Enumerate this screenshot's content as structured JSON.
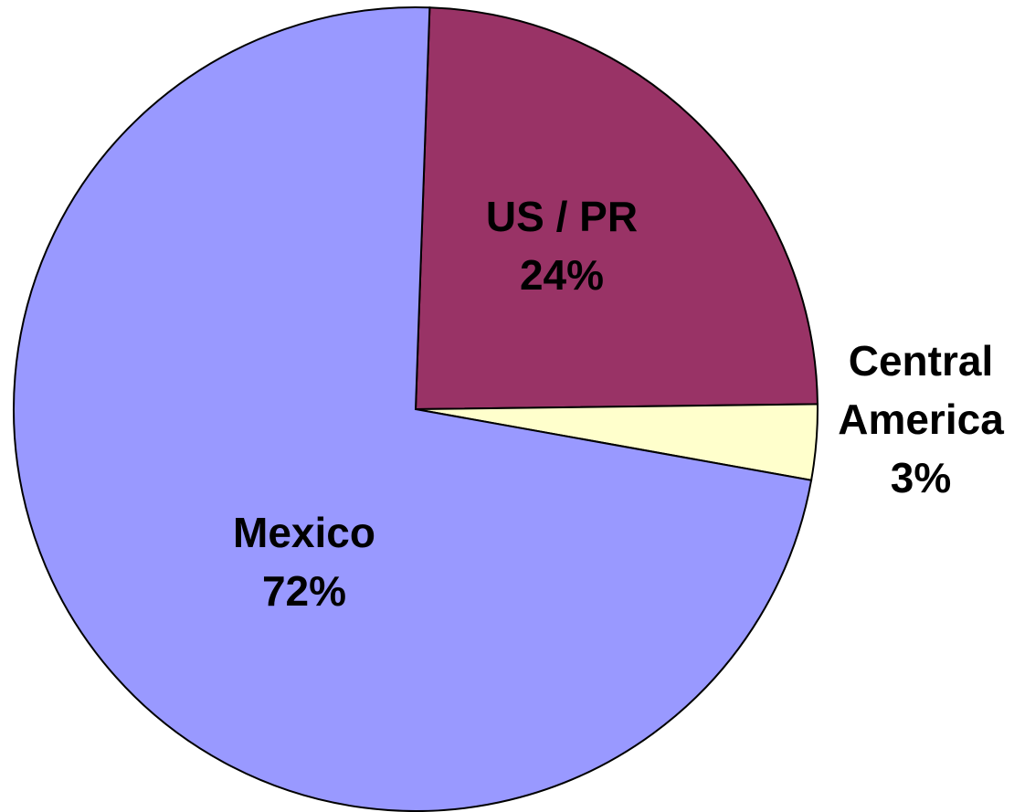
{
  "chart_data": {
    "type": "pie",
    "categories": [
      "US / PR",
      "Central America",
      "Mexico"
    ],
    "values": [
      24,
      3,
      72
    ],
    "value_labels": [
      "24%",
      "3%",
      "72%"
    ],
    "colors": [
      "#993366",
      "#ffffcc",
      "#9999ff"
    ]
  }
}
